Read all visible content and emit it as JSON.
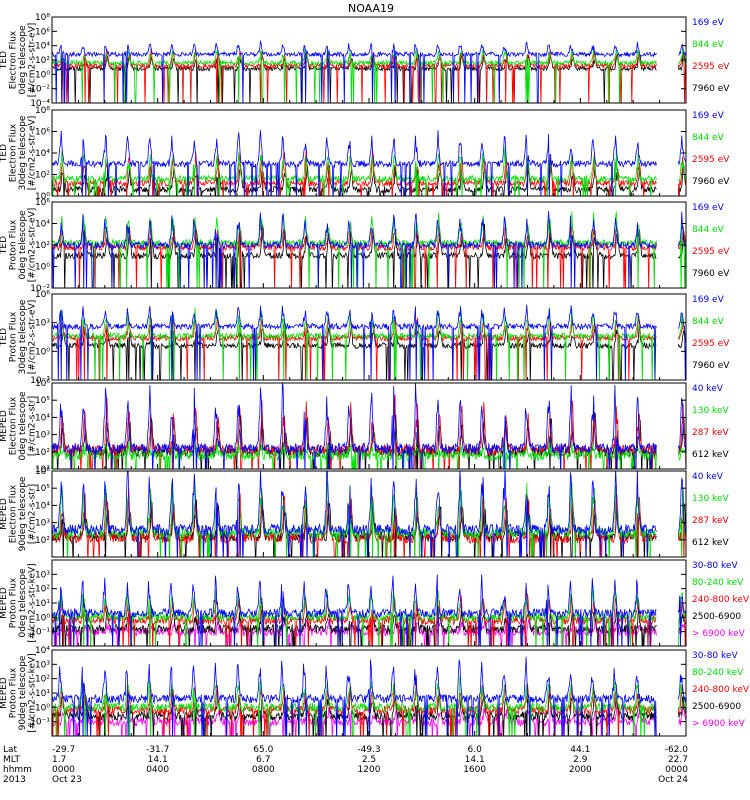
{
  "title": "NOAA19",
  "chart_data": {
    "type": "line",
    "title": "NOAA19",
    "x_tick_labels": [
      "0000",
      "0400",
      "0800",
      "1200",
      "1600",
      "2000",
      "0000"
    ],
    "x_range_hours": [
      0,
      24
    ],
    "data_gap_hours": [
      22.9,
      23.7
    ],
    "footer": {
      "row_labels": [
        "Lat",
        "MLT",
        "hhmm",
        "2013"
      ],
      "columns": [
        {
          "lat": "-29.7",
          "mlt": "1.7",
          "hhmm": "0000",
          "date": "Oct 23"
        },
        {
          "lat": "-31.7",
          "mlt": "14.1",
          "hhmm": "0400",
          "date": ""
        },
        {
          "lat": "65.0",
          "mlt": "6.7",
          "hhmm": "0800",
          "date": ""
        },
        {
          "lat": "-49.3",
          "mlt": "2.5",
          "hhmm": "1200",
          "date": ""
        },
        {
          "lat": "6.0",
          "mlt": "14.1",
          "hhmm": "1600",
          "date": ""
        },
        {
          "lat": "44.1",
          "mlt": "2.9",
          "hhmm": "2000",
          "date": ""
        },
        {
          "lat": "-62.0",
          "mlt": "22.7",
          "hhmm": "0000",
          "date": "Oct 24"
        }
      ]
    },
    "panels": [
      {
        "ylabel_lines": [
          "TED",
          "Electron Flux",
          "0deg telescope",
          "[#/cm2-s-str-eV]"
        ],
        "log_scale": true,
        "ylim_exp": [
          -4,
          8
        ],
        "tick_exps": [
          -4,
          -2,
          0,
          2,
          4,
          6,
          8
        ],
        "series": [
          {
            "name": "7960 eV",
            "color": "#000000",
            "base": 0.8,
            "amp": 1.6
          },
          {
            "name": "2595 eV",
            "color": "#ff0000",
            "base": 1.2,
            "amp": 1.6
          },
          {
            "name": "844 eV",
            "color": "#00dd00",
            "base": 1.6,
            "amp": 1.4
          },
          {
            "name": "169 eV",
            "color": "#0000ff",
            "base": 2.8,
            "amp": 1.2
          }
        ]
      },
      {
        "ylabel_lines": [
          "TED",
          "Electron Flux",
          "30deg telescope",
          "[#/cm2-s-str-eV]"
        ],
        "log_scale": true,
        "ylim_exp": [
          0,
          8
        ],
        "tick_exps": [
          0,
          2,
          4,
          6,
          8
        ],
        "series": [
          {
            "name": "7960 eV",
            "color": "#000000",
            "base": 0.6,
            "amp": 1.8
          },
          {
            "name": "2595 eV",
            "color": "#ff0000",
            "base": 1.2,
            "amp": 2.2
          },
          {
            "name": "844 eV",
            "color": "#00dd00",
            "base": 1.6,
            "amp": 2.0
          },
          {
            "name": "169 eV",
            "color": "#0000ff",
            "base": 3.0,
            "amp": 2.2
          }
        ]
      },
      {
        "ylabel_lines": [
          "TED",
          "Proton Flux",
          "0deg telescope",
          "[#/cm2-s-str-eV]"
        ],
        "log_scale": true,
        "ylim_exp": [
          -2,
          6
        ],
        "tick_exps": [
          -2,
          0,
          2,
          4,
          6
        ],
        "series": [
          {
            "name": "7960 eV",
            "color": "#000000",
            "base": 1.0,
            "amp": 2.0
          },
          {
            "name": "2595 eV",
            "color": "#ff0000",
            "base": 1.8,
            "amp": 1.6
          },
          {
            "name": "844 eV",
            "color": "#00dd00",
            "base": 2.2,
            "amp": 2.0
          },
          {
            "name": "169 eV",
            "color": "#0000ff",
            "base": 2.0,
            "amp": 2.2
          }
        ]
      },
      {
        "ylabel_lines": [
          "TED",
          "Proton Flux",
          "30deg telescope",
          "[#/cm2-s-str-eV]"
        ],
        "log_scale": true,
        "ylim_exp": [
          -3,
          6
        ],
        "tick_exps": [
          -3,
          0,
          3,
          6
        ],
        "series": [
          {
            "name": "7960 eV",
            "color": "#000000",
            "base": 0.6,
            "amp": 1.6
          },
          {
            "name": "2595 eV",
            "color": "#ff0000",
            "base": 1.4,
            "amp": 1.6
          },
          {
            "name": "844 eV",
            "color": "#00dd00",
            "base": 1.6,
            "amp": 2.0
          },
          {
            "name": "169 eV",
            "color": "#0000ff",
            "base": 2.6,
            "amp": 1.6
          }
        ]
      },
      {
        "ylabel_lines": [
          "MEPED",
          "Electron Flux",
          "0deg telescope",
          "[#/cm2-s-str]"
        ],
        "log_scale": true,
        "ylim_exp": [
          1,
          6
        ],
        "tick_exps": [
          1,
          2,
          3,
          4,
          5,
          6
        ],
        "series": [
          {
            "name": "612 keV",
            "color": "#000000",
            "base": 2.0,
            "amp": 1.6
          },
          {
            "name": "287 keV",
            "color": "#ff0000",
            "base": 2.1,
            "amp": 2.2
          },
          {
            "name": "130 keV",
            "color": "#00dd00",
            "base": 1.8,
            "amp": 0.4
          },
          {
            "name": "40 keV",
            "color": "#0000ff",
            "base": 2.2,
            "amp": 2.8
          }
        ]
      },
      {
        "ylabel_lines": [
          "MEPED",
          "Electron Flux",
          "90deg telescope",
          "[#/cm2-s-str]"
        ],
        "log_scale": true,
        "ylim_exp": [
          1,
          6
        ],
        "tick_exps": [
          2,
          3,
          4,
          5,
          6
        ],
        "series": [
          {
            "name": "612 keV",
            "color": "#000000",
            "base": 2.2,
            "amp": 1.6
          },
          {
            "name": "287 keV",
            "color": "#ff0000",
            "base": 2.1,
            "amp": 2.0
          },
          {
            "name": "130 keV",
            "color": "#00dd00",
            "base": 2.4,
            "amp": 2.2
          },
          {
            "name": "40 keV",
            "color": "#0000ff",
            "base": 2.6,
            "amp": 2.8
          }
        ]
      },
      {
        "ylabel_lines": [
          "MEPED",
          "Proton Flux",
          "0deg telescope",
          "[#/cm2-s-str-keV]"
        ],
        "log_scale": true,
        "ylim_exp": [
          -2,
          4
        ],
        "tick_exps": [
          -1,
          0,
          1,
          2,
          3
        ],
        "series": [
          {
            "name": "> 6900 keV",
            "color": "#ff00ff",
            "base": -1.0,
            "amp": 0.6
          },
          {
            "name": "2500-6900",
            "color": "#000000",
            "base": -0.8,
            "amp": 1.0
          },
          {
            "name": "240-800 keV",
            "color": "#ff0000",
            "base": -0.2,
            "amp": 1.2
          },
          {
            "name": "80-240 keV",
            "color": "#00dd00",
            "base": 0.0,
            "amp": 1.4
          },
          {
            "name": "30-80 keV",
            "color": "#0000ff",
            "base": 0.3,
            "amp": 1.8
          }
        ]
      },
      {
        "ylabel_lines": [
          "MEPED",
          "Proton Flux",
          "90deg telescope",
          "[#/cm2-s-str-keV]"
        ],
        "log_scale": true,
        "ylim_exp": [
          -2,
          4
        ],
        "tick_exps": [
          -1,
          0,
          1,
          2,
          3,
          4
        ],
        "series": [
          {
            "name": "> 6900 keV",
            "color": "#ff00ff",
            "base": -1.0,
            "amp": 0.7
          },
          {
            "name": "2500-6900",
            "color": "#000000",
            "base": -0.6,
            "amp": 1.2
          },
          {
            "name": "240-800 keV",
            "color": "#ff0000",
            "base": -0.2,
            "amp": 1.4
          },
          {
            "name": "80-240 keV",
            "color": "#00dd00",
            "base": 0.0,
            "amp": 1.6
          },
          {
            "name": "30-80 keV",
            "color": "#0000ff",
            "base": 0.6,
            "amp": 2.0
          }
        ]
      }
    ]
  }
}
